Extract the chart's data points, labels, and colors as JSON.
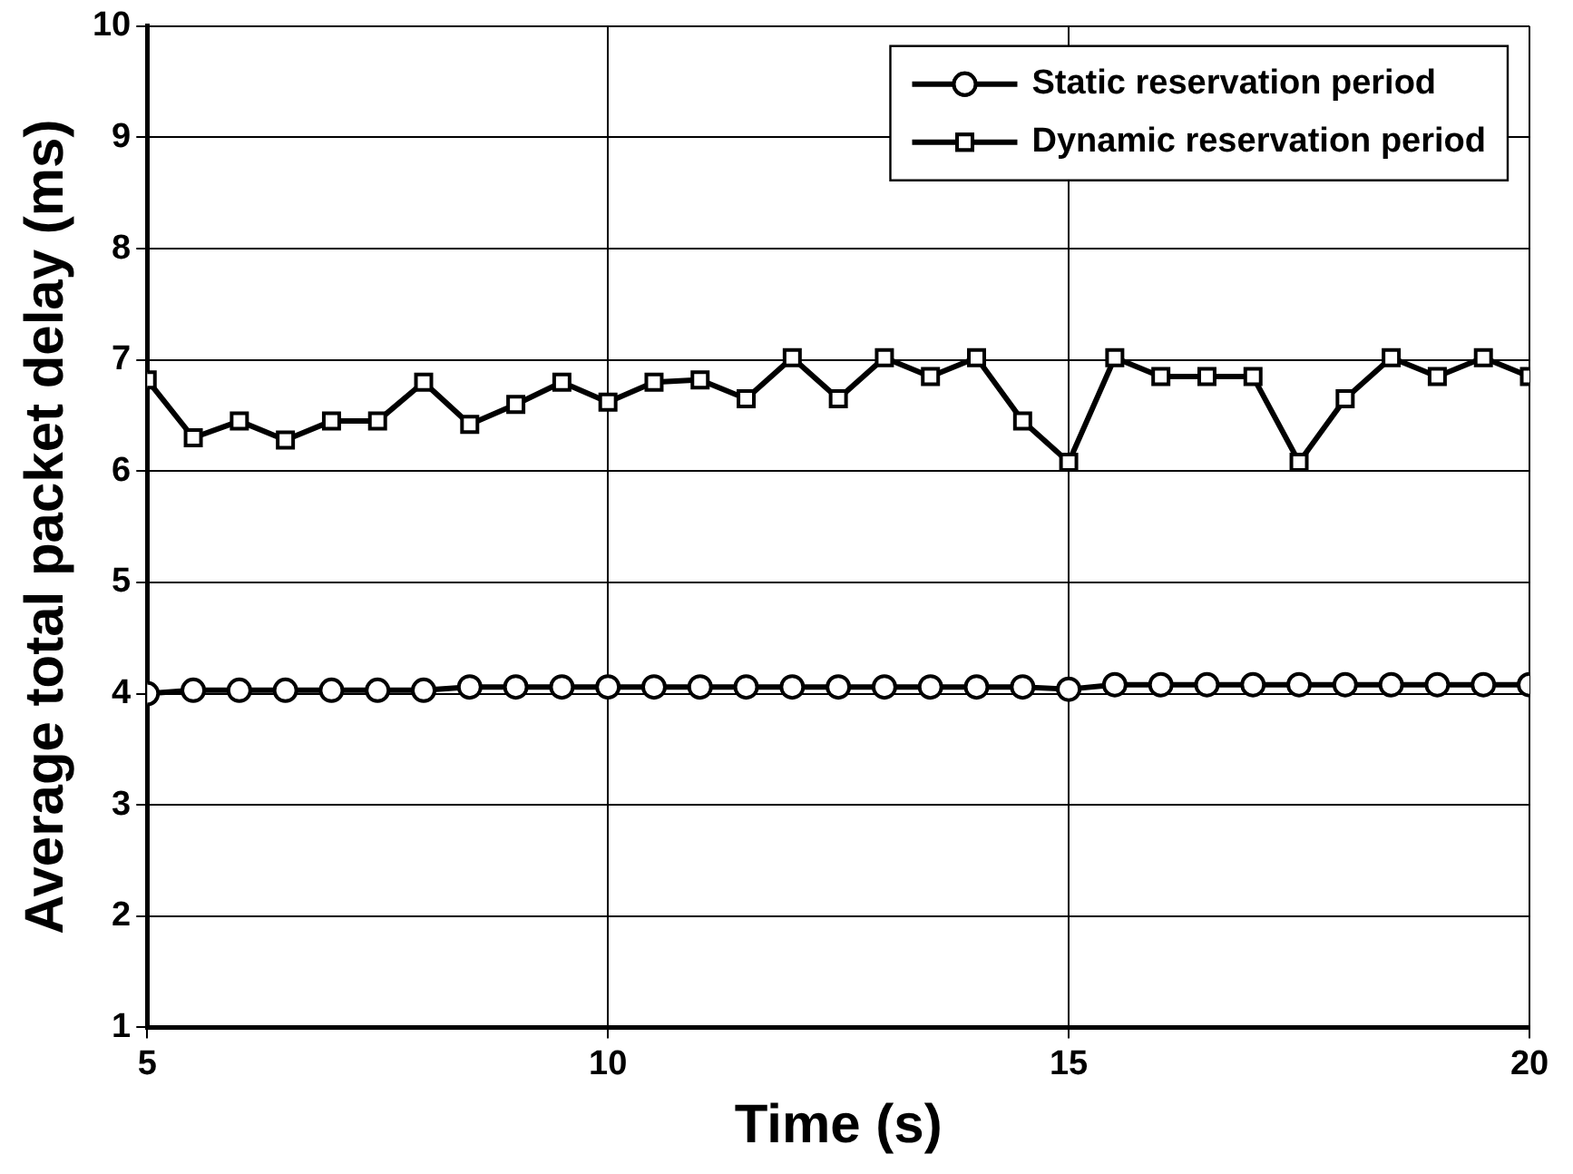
{
  "chart_data": {
    "type": "line",
    "xlabel": "Time (s)",
    "ylabel": "Average total packet delay (ms)",
    "x": [
      5,
      5.5,
      6,
      6.5,
      7,
      7.5,
      8,
      8.5,
      9,
      9.5,
      10,
      10.5,
      11,
      11.5,
      12,
      12.5,
      13,
      13.5,
      14,
      14.5,
      15,
      15.5,
      16,
      16.5,
      17,
      17.5,
      18,
      18.5,
      19,
      19.5,
      20
    ],
    "series": [
      {
        "name": "Static reservation period",
        "color": "#000000",
        "marker": "circle",
        "values": [
          4.0,
          4.03,
          4.03,
          4.03,
          4.03,
          4.03,
          4.03,
          4.06,
          4.06,
          4.06,
          4.06,
          4.06,
          4.06,
          4.06,
          4.06,
          4.06,
          4.06,
          4.06,
          4.06,
          4.06,
          4.04,
          4.08,
          4.08,
          4.08,
          4.08,
          4.08,
          4.08,
          4.08,
          4.08,
          4.08,
          4.08
        ]
      },
      {
        "name": "Dynamic reservation period",
        "color": "#000000",
        "marker": "square",
        "values": [
          6.82,
          6.3,
          6.45,
          6.28,
          6.45,
          6.45,
          6.8,
          6.42,
          6.6,
          6.8,
          6.62,
          6.8,
          6.82,
          6.65,
          7.02,
          6.65,
          7.02,
          6.85,
          7.02,
          6.45,
          6.08,
          7.02,
          6.85,
          6.85,
          6.85,
          6.08,
          6.65,
          7.02,
          6.85,
          7.02,
          6.85
        ]
      }
    ],
    "xlim": [
      5,
      20
    ],
    "xticks": [
      5,
      10,
      15,
      20
    ],
    "ylim": [
      1,
      10
    ],
    "yticks": [
      1,
      2,
      3,
      4,
      5,
      6,
      7,
      8,
      9,
      10
    ],
    "grid": true,
    "legend": "top right",
    "line_style": "solid"
  }
}
